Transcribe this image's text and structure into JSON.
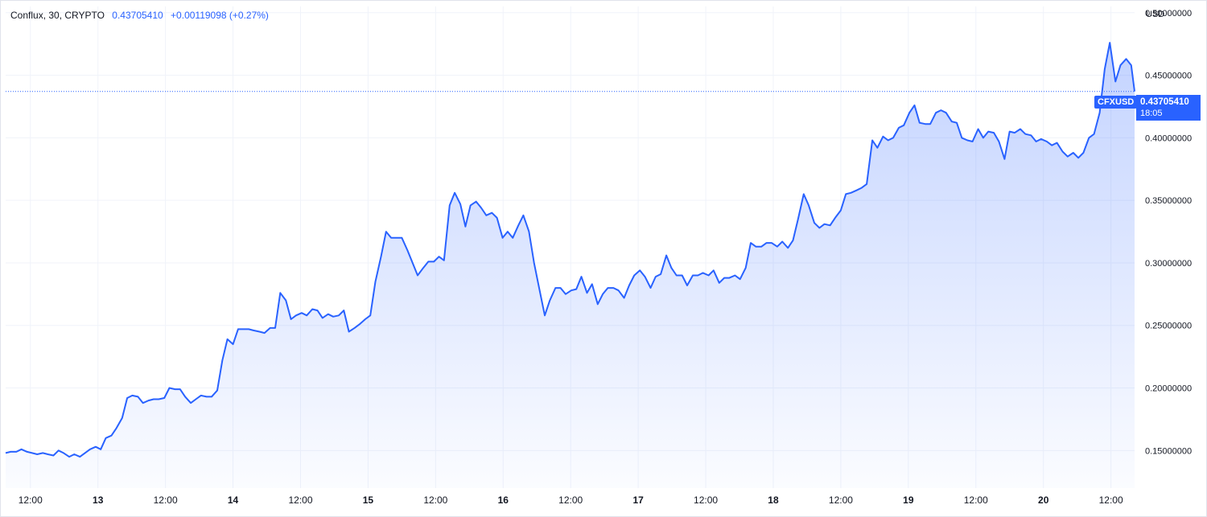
{
  "legend": {
    "symbol": "Conflux, 30, CRYPTO",
    "price": "0.43705410",
    "change": "+0.00119098 (+0.27%)"
  },
  "currency": "USD",
  "badge": {
    "symbol": "CFXUSD",
    "price": "0.43705410",
    "countdown": "18:05"
  },
  "colors": {
    "line": "#2962ff",
    "area_top": "#2962ff",
    "grid": "#f0f3fa",
    "text": "#131722"
  },
  "chart_data": {
    "type": "area",
    "title": "",
    "xlabel": "",
    "ylabel": "",
    "y_axis_ticks": [
      "0.15000000",
      "0.20000000",
      "0.25000000",
      "0.30000000",
      "0.35000000",
      "0.40000000",
      "0.45000000",
      "0.50000000"
    ],
    "ylim": [
      0.12,
      0.505
    ],
    "x_axis_ticks": [
      {
        "label": "12:00",
        "x_hours": 12,
        "day": false
      },
      {
        "label": "13",
        "x_hours": 24,
        "day": true
      },
      {
        "label": "12:00",
        "x_hours": 36,
        "day": false
      },
      {
        "label": "14",
        "x_hours": 48,
        "day": true
      },
      {
        "label": "12:00",
        "x_hours": 60,
        "day": false
      },
      {
        "label": "15",
        "x_hours": 72,
        "day": true
      },
      {
        "label": "12:00",
        "x_hours": 84,
        "day": false
      },
      {
        "label": "16",
        "x_hours": 96,
        "day": true
      },
      {
        "label": "12:00",
        "x_hours": 108,
        "day": false
      },
      {
        "label": "17",
        "x_hours": 120,
        "day": true
      },
      {
        "label": "12:00",
        "x_hours": 132,
        "day": false
      },
      {
        "label": "18",
        "x_hours": 144,
        "day": true
      },
      {
        "label": "12:00",
        "x_hours": 156,
        "day": false
      },
      {
        "label": "19",
        "x_hours": 168,
        "day": true
      },
      {
        "label": "12:00",
        "x_hours": 180,
        "day": false
      },
      {
        "label": "20",
        "x_hours": 192,
        "day": true
      },
      {
        "label": "12:00",
        "x_hours": 204,
        "day": false
      }
    ],
    "xlim": [
      7.6,
      208.2
    ],
    "last_value": 0.4370541,
    "series": [
      {
        "values": [
          [
            7.6,
            0.148
          ],
          [
            8.5,
            0.149
          ],
          [
            9.5,
            0.149
          ],
          [
            10.4,
            0.151
          ],
          [
            11.4,
            0.149
          ],
          [
            12.3,
            0.148
          ],
          [
            13.2,
            0.147
          ],
          [
            14.2,
            0.148
          ],
          [
            15.1,
            0.147
          ],
          [
            16.1,
            0.146
          ],
          [
            17.0,
            0.15
          ],
          [
            17.9,
            0.148
          ],
          [
            18.9,
            0.145
          ],
          [
            19.8,
            0.147
          ],
          [
            20.8,
            0.145
          ],
          [
            21.7,
            0.148
          ],
          [
            22.6,
            0.151
          ],
          [
            23.6,
            0.153
          ],
          [
            24.5,
            0.151
          ],
          [
            25.4,
            0.16
          ],
          [
            26.4,
            0.162
          ],
          [
            27.3,
            0.168
          ],
          [
            28.3,
            0.176
          ],
          [
            29.2,
            0.192
          ],
          [
            30.1,
            0.194
          ],
          [
            31.1,
            0.193
          ],
          [
            32.0,
            0.188
          ],
          [
            33.0,
            0.19
          ],
          [
            33.9,
            0.191
          ],
          [
            34.8,
            0.191
          ],
          [
            35.8,
            0.192
          ],
          [
            36.7,
            0.2
          ],
          [
            37.7,
            0.199
          ],
          [
            38.6,
            0.199
          ],
          [
            39.5,
            0.193
          ],
          [
            40.5,
            0.188
          ],
          [
            41.4,
            0.191
          ],
          [
            42.3,
            0.194
          ],
          [
            43.3,
            0.193
          ],
          [
            44.2,
            0.193
          ],
          [
            45.2,
            0.198
          ],
          [
            46.1,
            0.222
          ],
          [
            47.0,
            0.239
          ],
          [
            48.0,
            0.235
          ],
          [
            48.9,
            0.247
          ],
          [
            49.9,
            0.247
          ],
          [
            50.8,
            0.247
          ],
          [
            51.7,
            0.246
          ],
          [
            52.7,
            0.245
          ],
          [
            53.6,
            0.244
          ],
          [
            54.6,
            0.248
          ],
          [
            55.5,
            0.248
          ],
          [
            56.4,
            0.276
          ],
          [
            57.4,
            0.27
          ],
          [
            58.3,
            0.255
          ],
          [
            59.2,
            0.258
          ],
          [
            60.2,
            0.26
          ],
          [
            61.1,
            0.258
          ],
          [
            62.1,
            0.263
          ],
          [
            63.0,
            0.262
          ],
          [
            63.9,
            0.256
          ],
          [
            64.9,
            0.259
          ],
          [
            65.8,
            0.257
          ],
          [
            66.8,
            0.258
          ],
          [
            67.7,
            0.262
          ],
          [
            68.6,
            0.245
          ],
          [
            69.6,
            0.248
          ],
          [
            70.5,
            0.251
          ],
          [
            71.5,
            0.255
          ],
          [
            72.4,
            0.258
          ],
          [
            73.3,
            0.285
          ],
          [
            74.3,
            0.305
          ],
          [
            75.2,
            0.325
          ],
          [
            76.1,
            0.32
          ],
          [
            77.1,
            0.32
          ],
          [
            78.0,
            0.32
          ],
          [
            79.0,
            0.31
          ],
          [
            79.9,
            0.3
          ],
          [
            80.8,
            0.29
          ],
          [
            81.8,
            0.296
          ],
          [
            82.7,
            0.301
          ],
          [
            83.7,
            0.301
          ],
          [
            84.6,
            0.305
          ],
          [
            85.5,
            0.302
          ],
          [
            86.5,
            0.346
          ],
          [
            87.4,
            0.356
          ],
          [
            88.4,
            0.347
          ],
          [
            89.3,
            0.329
          ],
          [
            90.2,
            0.346
          ],
          [
            91.2,
            0.349
          ],
          [
            92.1,
            0.344
          ],
          [
            93.0,
            0.338
          ],
          [
            94.0,
            0.34
          ],
          [
            94.9,
            0.336
          ],
          [
            95.9,
            0.32
          ],
          [
            96.8,
            0.325
          ],
          [
            97.7,
            0.32
          ],
          [
            98.7,
            0.33
          ],
          [
            99.6,
            0.338
          ],
          [
            100.6,
            0.325
          ],
          [
            101.5,
            0.3
          ],
          [
            102.4,
            0.28
          ],
          [
            103.4,
            0.258
          ],
          [
            104.3,
            0.27
          ],
          [
            105.3,
            0.28
          ],
          [
            106.2,
            0.28
          ],
          [
            107.1,
            0.275
          ],
          [
            108.1,
            0.278
          ],
          [
            109.0,
            0.279
          ],
          [
            109.9,
            0.289
          ],
          [
            110.9,
            0.276
          ],
          [
            111.8,
            0.283
          ],
          [
            112.8,
            0.267
          ],
          [
            113.7,
            0.275
          ],
          [
            114.6,
            0.28
          ],
          [
            115.6,
            0.28
          ],
          [
            116.5,
            0.278
          ],
          [
            117.5,
            0.272
          ],
          [
            118.4,
            0.282
          ],
          [
            119.3,
            0.29
          ],
          [
            120.3,
            0.294
          ],
          [
            121.2,
            0.289
          ],
          [
            122.2,
            0.28
          ],
          [
            123.1,
            0.289
          ],
          [
            124.0,
            0.291
          ],
          [
            125.0,
            0.306
          ],
          [
            125.9,
            0.296
          ],
          [
            126.8,
            0.29
          ],
          [
            127.8,
            0.29
          ],
          [
            128.7,
            0.282
          ],
          [
            129.7,
            0.29
          ],
          [
            130.6,
            0.29
          ],
          [
            131.5,
            0.292
          ],
          [
            132.5,
            0.29
          ],
          [
            133.4,
            0.294
          ],
          [
            134.4,
            0.284
          ],
          [
            135.3,
            0.288
          ],
          [
            136.2,
            0.288
          ],
          [
            137.2,
            0.29
          ],
          [
            138.1,
            0.287
          ],
          [
            139.1,
            0.296
          ],
          [
            140.0,
            0.316
          ],
          [
            140.9,
            0.313
          ],
          [
            141.9,
            0.313
          ],
          [
            142.8,
            0.316
          ],
          [
            143.7,
            0.316
          ],
          [
            144.7,
            0.313
          ],
          [
            145.6,
            0.317
          ],
          [
            146.6,
            0.312
          ],
          [
            147.5,
            0.318
          ],
          [
            148.4,
            0.335
          ],
          [
            149.4,
            0.355
          ],
          [
            150.3,
            0.346
          ],
          [
            151.3,
            0.332
          ],
          [
            152.2,
            0.328
          ],
          [
            153.1,
            0.331
          ],
          [
            154.1,
            0.33
          ],
          [
            155.0,
            0.336
          ],
          [
            156.0,
            0.342
          ],
          [
            156.9,
            0.355
          ],
          [
            157.8,
            0.356
          ],
          [
            158.8,
            0.358
          ],
          [
            159.7,
            0.36
          ],
          [
            160.6,
            0.363
          ],
          [
            161.6,
            0.398
          ],
          [
            162.5,
            0.392
          ],
          [
            163.5,
            0.401
          ],
          [
            164.4,
            0.398
          ],
          [
            165.3,
            0.4
          ],
          [
            166.3,
            0.408
          ],
          [
            167.2,
            0.41
          ],
          [
            168.2,
            0.42
          ],
          [
            169.1,
            0.426
          ],
          [
            170.0,
            0.412
          ],
          [
            171.0,
            0.411
          ],
          [
            171.9,
            0.411
          ],
          [
            172.9,
            0.42
          ],
          [
            173.8,
            0.422
          ],
          [
            174.7,
            0.42
          ],
          [
            175.7,
            0.413
          ],
          [
            176.6,
            0.412
          ],
          [
            177.5,
            0.4
          ],
          [
            178.5,
            0.398
          ],
          [
            179.4,
            0.397
          ],
          [
            180.4,
            0.407
          ],
          [
            181.3,
            0.4
          ],
          [
            182.2,
            0.405
          ],
          [
            183.2,
            0.404
          ],
          [
            184.1,
            0.397
          ],
          [
            185.1,
            0.383
          ],
          [
            186.0,
            0.405
          ],
          [
            186.9,
            0.404
          ],
          [
            187.9,
            0.407
          ],
          [
            188.8,
            0.403
          ],
          [
            189.8,
            0.402
          ],
          [
            190.7,
            0.397
          ],
          [
            191.6,
            0.399
          ],
          [
            192.6,
            0.397
          ],
          [
            193.5,
            0.394
          ],
          [
            194.4,
            0.396
          ],
          [
            195.4,
            0.389
          ],
          [
            196.3,
            0.385
          ],
          [
            197.3,
            0.388
          ],
          [
            198.2,
            0.384
          ],
          [
            199.1,
            0.388
          ],
          [
            200.1,
            0.4
          ],
          [
            201.0,
            0.403
          ],
          [
            202.0,
            0.42
          ],
          [
            202.9,
            0.455
          ],
          [
            203.8,
            0.476
          ],
          [
            204.8,
            0.445
          ],
          [
            205.7,
            0.458
          ],
          [
            206.7,
            0.463
          ],
          [
            207.6,
            0.458
          ],
          [
            208.2,
            0.437
          ]
        ]
      }
    ]
  }
}
